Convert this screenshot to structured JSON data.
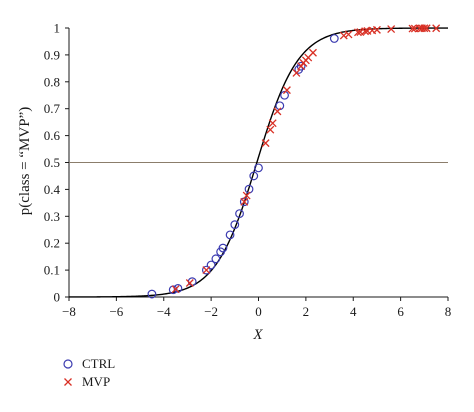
{
  "chart_data": {
    "type": "scatter",
    "xlabel": "X",
    "ylabel": "p(class = “MVP”)",
    "xlim": [
      -8,
      8
    ],
    "ylim": [
      0,
      1
    ],
    "xticks": [
      -8,
      -6,
      -4,
      -2,
      0,
      2,
      4,
      6,
      8
    ],
    "yticks": [
      0,
      0.1,
      0.2,
      0.3,
      0.4,
      0.5,
      0.6,
      0.7,
      0.8,
      0.9,
      1
    ],
    "grid": false,
    "legend_position": "bottom-left",
    "reference_line": {
      "y": 0.5,
      "color": "#8b7d6b"
    },
    "fitted_curve": {
      "type": "logistic",
      "color": "#000000"
    },
    "series": [
      {
        "name": "CTRL",
        "marker": "circle",
        "color": "#3b3bb0",
        "x": [
          -4.5,
          -3.6,
          -3.4,
          -2.8,
          -2.2,
          -2.0,
          -1.8,
          -1.6,
          -1.5,
          -1.2,
          -1.0,
          -0.8,
          -0.6,
          -0.4,
          -0.2,
          0.0,
          0.9,
          1.1,
          1.7,
          1.8,
          3.2
        ],
        "y": [
          0.011,
          0.027,
          0.032,
          0.057,
          0.1,
          0.119,
          0.142,
          0.168,
          0.182,
          0.231,
          0.269,
          0.31,
          0.354,
          0.401,
          0.45,
          0.48,
          0.711,
          0.75,
          0.846,
          0.858,
          0.961
        ]
      },
      {
        "name": "MVP",
        "marker": "cross",
        "color": "#d93025",
        "x": [
          -3.5,
          -2.9,
          -2.2,
          -0.6,
          -0.5,
          0.3,
          0.5,
          0.6,
          0.8,
          1.2,
          1.6,
          1.8,
          1.9,
          2.0,
          2.1,
          2.3,
          3.6,
          3.8,
          4.2,
          4.3,
          4.5,
          4.6,
          4.8,
          5.0,
          5.6,
          6.5,
          6.6,
          6.8,
          6.9,
          7.0,
          7.1,
          7.5
        ],
        "y": [
          0.029,
          0.052,
          0.1,
          0.354,
          0.377,
          0.572,
          0.622,
          0.646,
          0.69,
          0.769,
          0.833,
          0.858,
          0.87,
          0.88,
          0.89,
          0.908,
          0.972,
          0.976,
          0.984,
          0.985,
          0.988,
          0.989,
          0.991,
          0.993,
          0.996,
          0.998,
          0.998,
          0.999,
          0.999,
          0.999,
          0.999,
          0.999
        ]
      }
    ]
  }
}
